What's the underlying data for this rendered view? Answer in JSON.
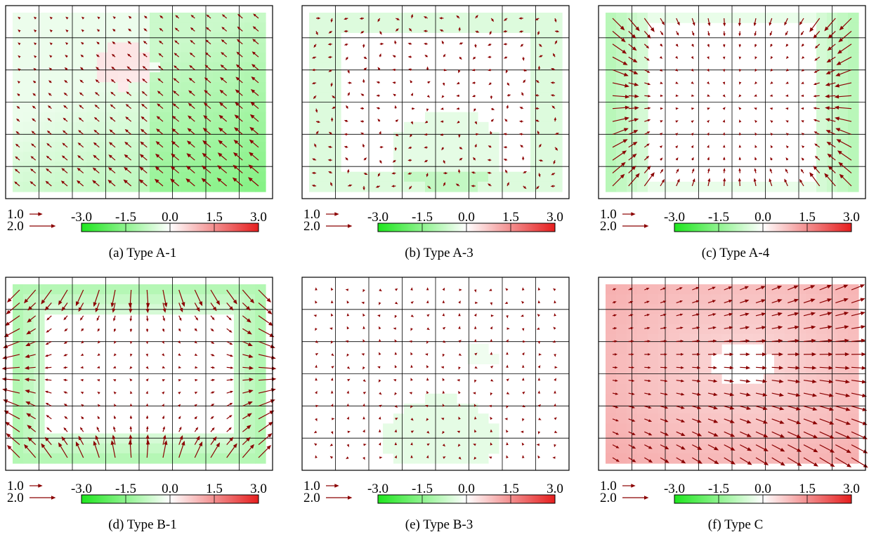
{
  "figure": {
    "legend": {
      "arrow_scale": [
        {
          "label": "1.0",
          "magnitude": 1.0
        },
        {
          "label": "2.0",
          "magnitude": 2.0
        }
      ],
      "colorbar": {
        "min": -3.0,
        "max": 3.0,
        "ticks": [
          "-3.0",
          "-1.5",
          "0.0",
          "1.5",
          "3.0"
        ],
        "tick_values": [
          -3.0,
          -1.5,
          0.0,
          1.5,
          3.0
        ],
        "colors": {
          "negative": "#1ee61e",
          "zero": "#ffffff",
          "positive": "#e61e1e"
        }
      },
      "arrow_color": "#8b0000",
      "grid": {
        "columns": 8,
        "rows": 6
      }
    },
    "panels": [
      {
        "caption": "(a) Type A-1"
      },
      {
        "caption": "(b) Type A-3"
      },
      {
        "caption": "(c) Type A-4"
      },
      {
        "caption": "(d) Type B-1"
      },
      {
        "caption": "(e) Type B-3"
      },
      {
        "caption": "(f) Type C"
      }
    ]
  },
  "chart_data": [
    {
      "type": "vector-field",
      "caption": "(a) Type A-1",
      "pattern": "pointing up-left toward upper-left, larger at bottom-right",
      "contour_range": [
        -3.0,
        3.0
      ],
      "contour": "mostly green (approx -0.5 to -1.0), larger in lower/right region; faint red patch near upper center"
    },
    {
      "type": "vector-field",
      "caption": "(b) Type A-3",
      "pattern": "small arrows, mixed directions, slightly larger near corners",
      "contour_range": [
        -3.0,
        3.0
      ],
      "contour": "faint green near edges and lower center"
    },
    {
      "type": "vector-field",
      "caption": "(c) Type A-4",
      "pattern": "arrows pointing outward toward corners, large at the four corners",
      "contour_range": [
        -3.0,
        3.0
      ],
      "contour": "green band along the left and right edges and corners"
    },
    {
      "type": "vector-field",
      "caption": "(d) Type B-1",
      "pattern": "arrows pointing outward toward corners and sides, large at corners",
      "contour_range": [
        -3.0,
        3.0
      ],
      "contour": "green ring around the perimeter, stronger on the left"
    },
    {
      "type": "vector-field",
      "caption": "(e) Type B-3",
      "pattern": "very small arrows in mixed directions",
      "contour_range": [
        -3.0,
        3.0
      ],
      "contour": "nearly white with faint green in the lower center"
    },
    {
      "type": "vector-field",
      "caption": "(f) Type C",
      "pattern": "arrows pointing right / outward, growing toward the right and lower-right",
      "contour_range": [
        -3.0,
        3.0
      ],
      "contour": "light red (approx +0.5 to +1.0) over most of the field, white near the center"
    }
  ]
}
